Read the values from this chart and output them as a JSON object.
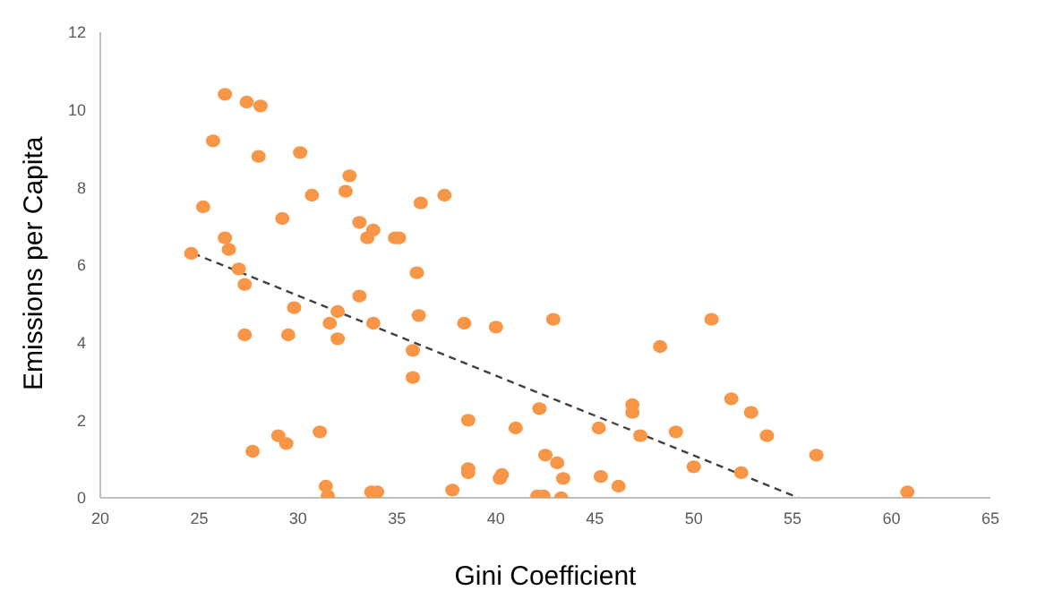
{
  "chart_data": {
    "type": "scatter",
    "xlabel": "Gini Coefficient",
    "ylabel": "Emissions per Capita",
    "xlim": [
      20,
      65
    ],
    "xticks": [
      20,
      25,
      30,
      35,
      40,
      45,
      50,
      55,
      60,
      65
    ],
    "ylim": [
      0,
      12
    ],
    "yticks": [
      0,
      2,
      4,
      6,
      8,
      10,
      12
    ],
    "grid": false,
    "legend": false,
    "series": [
      {
        "type": "scatter",
        "color": "#f79646",
        "marker": "circle",
        "x": [
          24.6,
          25.2,
          25.7,
          26.3,
          26.3,
          26.5,
          27.0,
          27.3,
          27.3,
          27.4,
          27.7,
          28.1,
          28.0,
          29.0,
          29.2,
          29.4,
          29.5,
          29.8,
          30.1,
          30.7,
          31.1,
          31.4,
          31.5,
          31.6,
          32.0,
          32.0,
          32.4,
          32.6,
          33.1,
          33.1,
          33.5,
          33.8,
          33.8,
          33.7,
          34.0,
          34.9,
          35.1,
          35.8,
          35.8,
          36.0,
          36.1,
          36.2,
          37.4,
          37.8,
          38.4,
          38.6,
          38.6,
          38.6,
          40.0,
          40.2,
          40.3,
          41.0,
          42.2,
          42.1,
          42.4,
          42.5,
          43.1,
          42.9,
          43.4,
          43.3,
          45.2,
          45.3,
          46.2,
          46.9,
          46.9,
          47.3,
          48.3,
          49.1,
          50.0,
          50.9,
          51.9,
          52.9,
          52.4,
          53.7,
          56.2,
          60.8
        ],
        "values": [
          6.3,
          7.5,
          9.2,
          10.4,
          6.7,
          6.4,
          5.9,
          5.5,
          4.2,
          10.2,
          1.2,
          10.1,
          8.8,
          1.6,
          7.2,
          1.4,
          4.2,
          4.9,
          8.9,
          7.8,
          1.7,
          0.3,
          0.05,
          4.5,
          4.8,
          4.1,
          7.9,
          8.3,
          5.2,
          7.1,
          6.7,
          6.9,
          4.5,
          0.15,
          0.15,
          6.7,
          6.7,
          3.8,
          3.1,
          5.8,
          4.7,
          7.6,
          7.8,
          0.2,
          4.5,
          2.0,
          0.75,
          0.65,
          4.4,
          0.5,
          0.6,
          1.8,
          2.3,
          0.05,
          0.05,
          1.1,
          0.9,
          4.6,
          0.5,
          0,
          1.8,
          0.55,
          0.3,
          2.4,
          2.2,
          1.6,
          3.9,
          1.7,
          0.8,
          4.6,
          2.55,
          2.2,
          0.65,
          1.6,
          1.1,
          0.15
        ]
      },
      {
        "type": "line",
        "color": "#404040",
        "line_style": "dashed",
        "marker": "none",
        "x": [
          24.7,
          55.3
        ],
        "values": [
          6.3,
          0
        ]
      }
    ]
  }
}
